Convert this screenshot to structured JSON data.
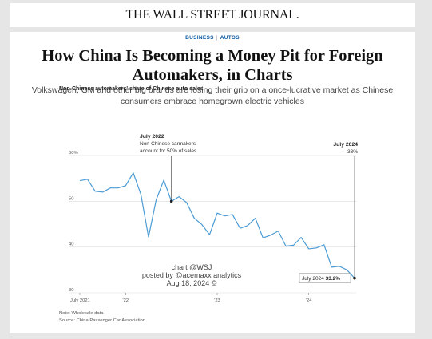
{
  "masthead": {
    "logo": "THE WALL STREET JOURNAL."
  },
  "article": {
    "section": "BUSINESS",
    "subsection": "AUTOS",
    "headline_line1": "How China Is Becoming a Money Pit for Foreign",
    "headline_line2": "Automakers, in Charts",
    "dek_line1": "Volkswagen, GM and other big brands are losing their grip on a once-lucrative market as Chinese",
    "dek_line2": "consumers embrace homegrown electric vehicles"
  },
  "chart_data": {
    "type": "line",
    "title": "Non-Chinese automakers' share of Chinese auto sales",
    "ylim": [
      30,
      60
    ],
    "y_ticks": [
      {
        "value": 30,
        "label": "30"
      },
      {
        "value": 40,
        "label": "40"
      },
      {
        "value": 50,
        "label": "50"
      },
      {
        "value": 60,
        "label": "60%"
      }
    ],
    "x_ticks": [
      {
        "index": 0,
        "label": "July 2021"
      },
      {
        "index": 6,
        "label": "'22"
      },
      {
        "index": 18,
        "label": "'23"
      },
      {
        "index": 30,
        "label": "'24"
      }
    ],
    "x": [
      "2021-07",
      "2021-08",
      "2021-09",
      "2021-10",
      "2021-11",
      "2021-12",
      "2022-01",
      "2022-02",
      "2022-03",
      "2022-04",
      "2022-05",
      "2022-06",
      "2022-07",
      "2022-08",
      "2022-09",
      "2022-10",
      "2022-11",
      "2022-12",
      "2023-01",
      "2023-02",
      "2023-03",
      "2023-04",
      "2023-05",
      "2023-06",
      "2023-07",
      "2023-08",
      "2023-09",
      "2023-10",
      "2023-11",
      "2023-12",
      "2024-01",
      "2024-02",
      "2024-03",
      "2024-04",
      "2024-05",
      "2024-06",
      "2024-07"
    ],
    "series": [
      {
        "color": "#4a9bd4",
        "values": [
          54.5,
          54.8,
          52.2,
          52.0,
          52.9,
          52.9,
          53.4,
          56.2,
          51.5,
          42.2,
          50.3,
          54.6,
          50.0,
          51.0,
          49.7,
          46.3,
          44.9,
          42.7,
          47.4,
          46.8,
          47.1,
          44.1,
          44.7,
          46.3,
          42.0,
          42.6,
          43.5,
          40.2,
          40.4,
          42.1,
          39.6,
          39.8,
          40.5,
          35.6,
          35.8,
          35.0,
          33.2
        ]
      }
    ],
    "annotations": [
      {
        "index": 12,
        "title": "July 2022",
        "line1": "Non-Chinese carmakers",
        "line2": "account for 50% of sales"
      },
      {
        "index": 36,
        "title": "July 2024",
        "line1": "33%"
      }
    ],
    "end_label": {
      "prefix": "July 2024 ",
      "value": "33.2%"
    },
    "grid": true,
    "note": "Note: Wholesale data",
    "source": "Source: China Passenger Car Association"
  },
  "watermark": {
    "line1": "chart @WSJ",
    "line2": "posted by @acemaxx analytics",
    "line3": "Aug 18, 2024 ©"
  }
}
